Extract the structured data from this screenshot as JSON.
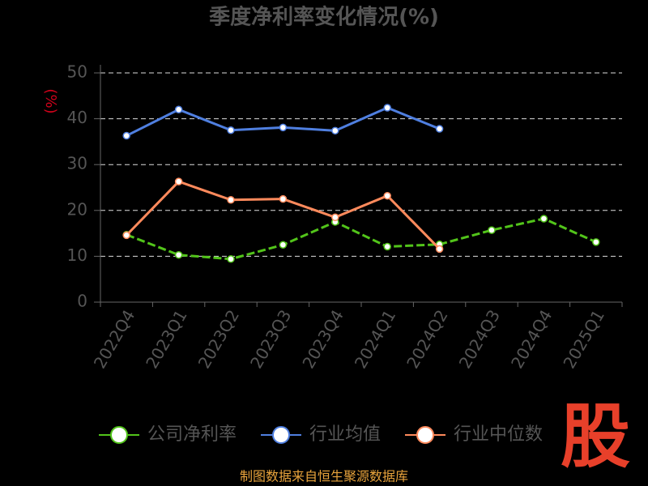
{
  "chart_data": {
    "type": "line",
    "title": "季度净利率变化情况(%)",
    "y_label": "(%)",
    "categories": [
      "2022Q4",
      "2023Q1",
      "2023Q2",
      "2023Q3",
      "2023Q4",
      "2024Q1",
      "2024Q2",
      "2024Q3",
      "2024Q4",
      "2025Q1"
    ],
    "series": [
      {
        "name": "公司净利率",
        "color": "#52c41a",
        "dashed": true,
        "values": [
          14.7,
          10.3,
          9.4,
          12.5,
          17.5,
          12.1,
          12.6,
          15.7,
          18.2,
          13.1
        ]
      },
      {
        "name": "行业均值",
        "color": "#4f7fe0",
        "dashed": false,
        "values": [
          36.3,
          42.0,
          37.5,
          38.1,
          37.4,
          42.4,
          37.8,
          null,
          null,
          null
        ]
      },
      {
        "name": "行业中位数",
        "color": "#ff8a5c",
        "dashed": false,
        "values": [
          14.6,
          26.3,
          22.3,
          22.5,
          18.5,
          23.2,
          11.6,
          null,
          null,
          null
        ]
      }
    ],
    "ylim": [
      0,
      50
    ],
    "yticks": [
      0,
      10,
      20,
      30,
      40,
      50
    ],
    "grid": true,
    "legend": "bottom",
    "source": "制图数据来自恒生聚源数据库",
    "logo": "股"
  }
}
